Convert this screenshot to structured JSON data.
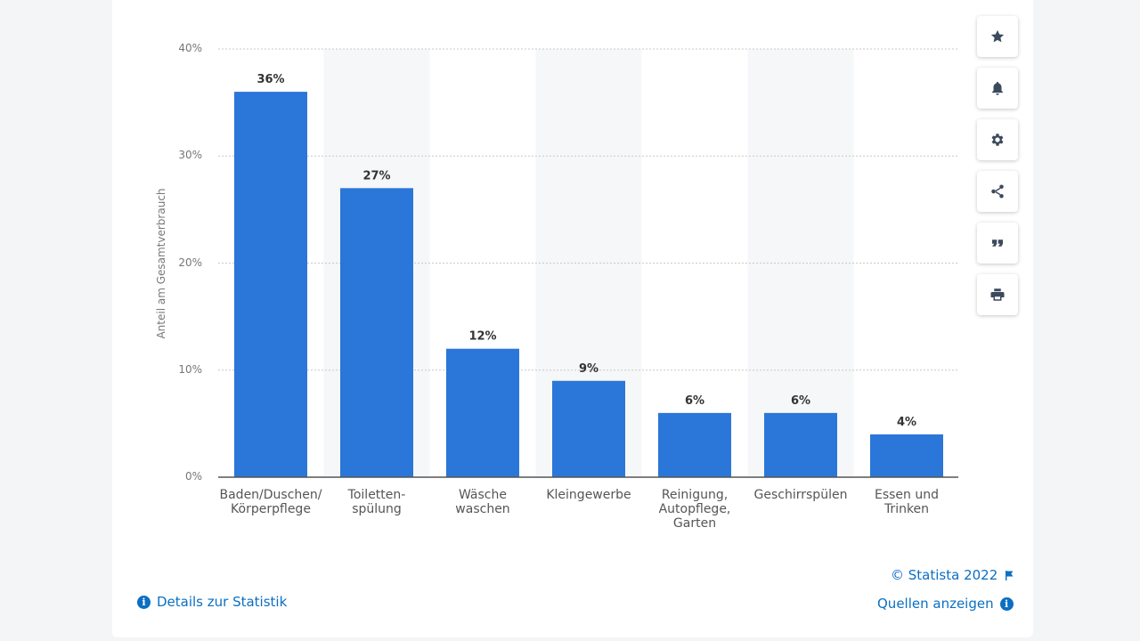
{
  "chart_data": {
    "type": "bar",
    "categories": [
      [
        "Baden/Duschen/",
        "Körperpflege"
      ],
      [
        "Toiletten-",
        "spülung"
      ],
      [
        "Wäsche",
        "waschen"
      ],
      [
        "Kleingewerbe"
      ],
      [
        "Reinigung,",
        "Autopflege,",
        "Garten"
      ],
      [
        "Geschirrspülen"
      ],
      [
        "Essen und",
        "Trinken"
      ]
    ],
    "values": [
      36,
      27,
      12,
      9,
      6,
      6,
      4
    ],
    "value_labels": [
      "36%",
      "27%",
      "12%",
      "9%",
      "6%",
      "6%",
      "4%"
    ],
    "ylabel": "Anteil am Gesamtverbrauch",
    "ylim": [
      0,
      40
    ],
    "yticks": [
      0,
      10,
      20,
      30,
      40
    ],
    "ytick_labels": [
      "0%",
      "10%",
      "20%",
      "30%",
      "40%"
    ],
    "bar_color": "#2b76d9",
    "grid": true
  },
  "footer": {
    "copyright": "© Statista 2022",
    "details_link": "Details zur Statistik",
    "sources_link": "Quellen anzeigen"
  },
  "toolbar": [
    "star-icon",
    "bell-icon",
    "gear-icon",
    "share-icon",
    "quote-icon",
    "print-icon"
  ],
  "colors": {
    "link": "#0b6fc2",
    "bar": "#2b76d9"
  }
}
